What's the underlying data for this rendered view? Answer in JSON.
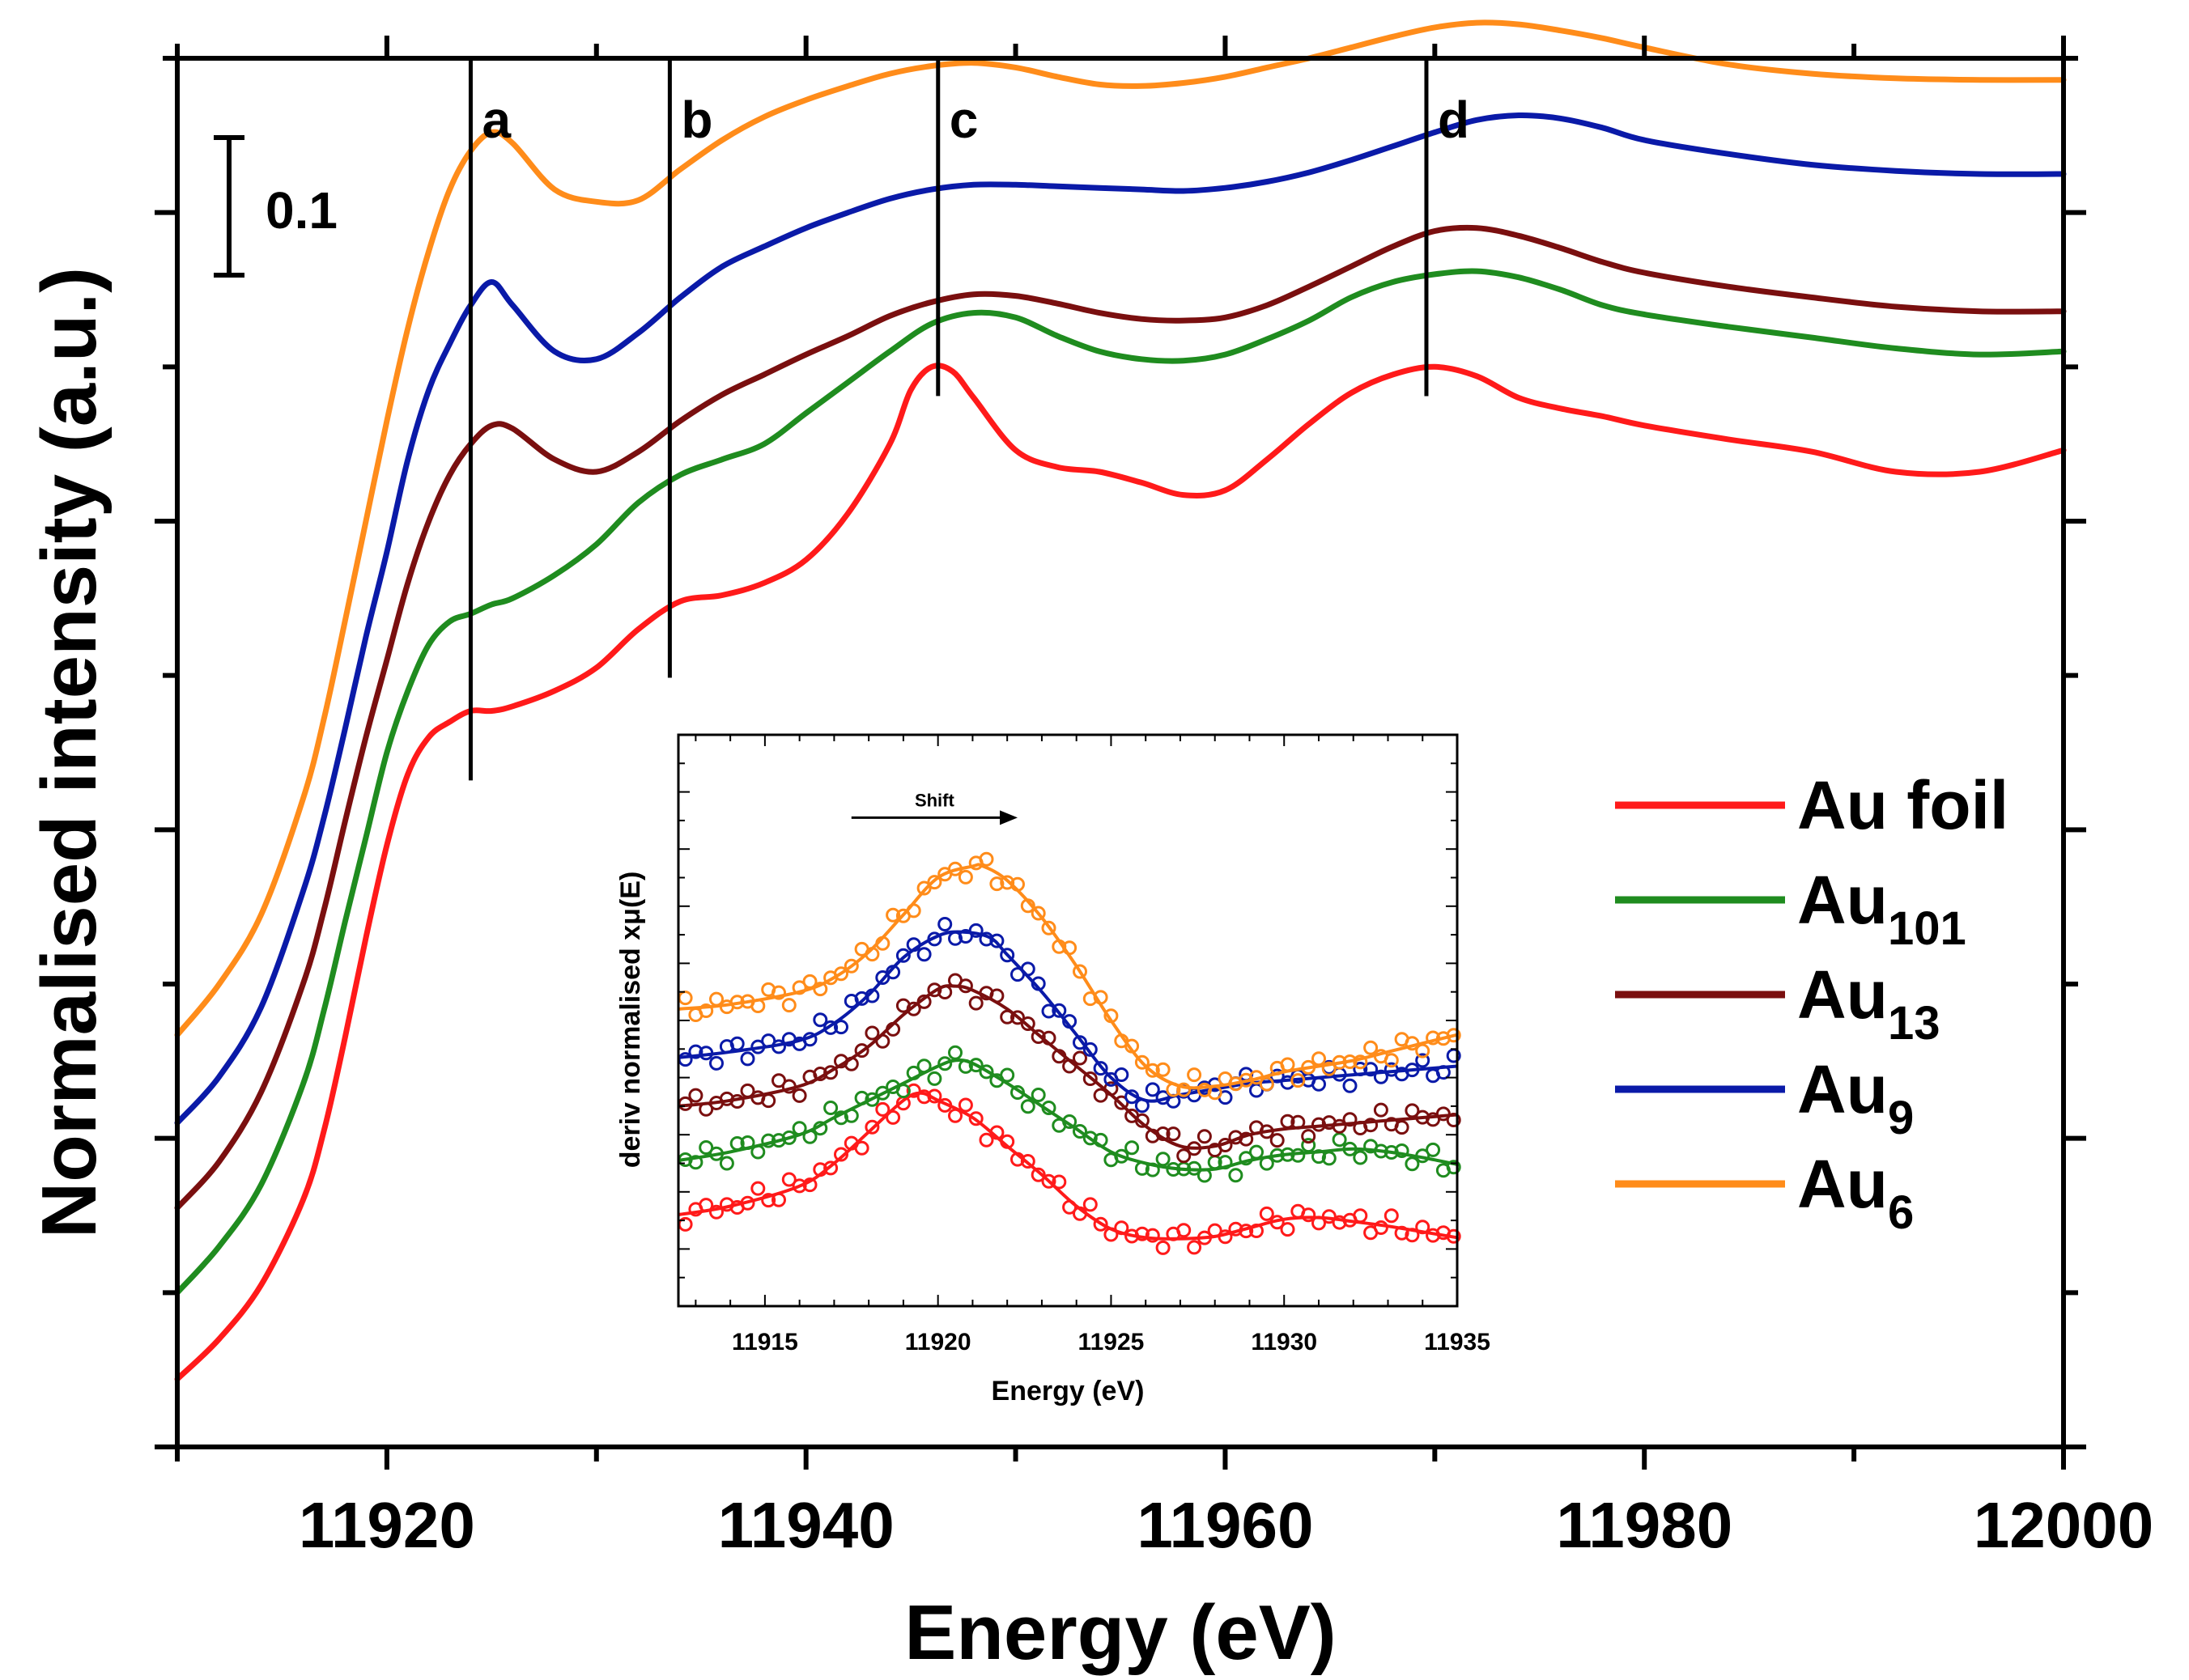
{
  "chart_data": [
    {
      "type": "line",
      "xlabel": "Energy (eV)",
      "ylabel": "Normalised intensity (a.u.)",
      "xlim": [
        11910,
        12000
      ],
      "ylim": [
        0,
        0.9
      ],
      "x_ticks": [
        11920,
        11940,
        11960,
        11980,
        12000
      ],
      "x_tick_labels": [
        "11920",
        "11940",
        "11960",
        "11980",
        "12000"
      ],
      "scale_bar": {
        "label": "0.1",
        "value": 0.1
      },
      "markers": [
        {
          "label": "a",
          "x": 11924
        },
        {
          "label": "b",
          "x": 11933.5
        },
        {
          "label": "c",
          "x": 11946.3
        },
        {
          "label": "d",
          "x": 11969.6
        }
      ],
      "legend": {
        "placement": "right",
        "entries": [
          {
            "name": "Au foil",
            "base": "Au foil",
            "sub": ""
          },
          {
            "name": "Au101",
            "base": "Au",
            "sub": "101"
          },
          {
            "name": "Au13",
            "base": "Au",
            "sub": "13"
          },
          {
            "name": "Au9",
            "base": "Au",
            "sub": "9"
          },
          {
            "name": "Au6",
            "base": "Au",
            "sub": "6"
          }
        ]
      },
      "series": [
        {
          "name": "Au foil",
          "color": "#ff1a1a",
          "x": [
            11910,
            11912,
            11914,
            11916,
            11917,
            11918,
            11919,
            11920,
            11921,
            11922,
            11923,
            11924,
            11925,
            11926,
            11928,
            11930,
            11932,
            11934,
            11936,
            11938,
            11940,
            11942,
            11944,
            11945,
            11946,
            11947,
            11948,
            11950,
            11952,
            11954,
            11956,
            11958,
            11960,
            11962,
            11964,
            11966,
            11968,
            11970,
            11972,
            11974,
            11976,
            11978,
            11980,
            11984,
            11988,
            11992,
            11996,
            12000
          ],
          "y": [
            0.044,
            0.07,
            0.105,
            0.16,
            0.205,
            0.265,
            0.33,
            0.39,
            0.436,
            0.46,
            0.47,
            0.477,
            0.477,
            0.48,
            0.49,
            0.505,
            0.53,
            0.548,
            0.552,
            0.56,
            0.575,
            0.605,
            0.65,
            0.685,
            0.7,
            0.697,
            0.68,
            0.646,
            0.635,
            0.632,
            0.625,
            0.617,
            0.62,
            0.64,
            0.663,
            0.683,
            0.695,
            0.7,
            0.694,
            0.68,
            0.673,
            0.668,
            0.662,
            0.653,
            0.645,
            0.632,
            0.632,
            0.646
          ]
        },
        {
          "name": "Au101",
          "color": "#1f8c1f",
          "x": [
            11910,
            11912,
            11914,
            11916,
            11917,
            11918,
            11919,
            11920,
            11921,
            11922,
            11923,
            11924,
            11925,
            11926,
            11928,
            11930,
            11932,
            11934,
            11936,
            11938,
            11940,
            11942,
            11944,
            11946,
            11948,
            11950,
            11952,
            11954,
            11956,
            11958,
            11960,
            11962,
            11964,
            11966,
            11968,
            11970,
            11972,
            11974,
            11976,
            11978,
            11980,
            11984,
            11988,
            11992,
            11996,
            12000
          ],
          "y": [
            0.1,
            0.13,
            0.17,
            0.235,
            0.283,
            0.34,
            0.395,
            0.45,
            0.49,
            0.52,
            0.535,
            0.54,
            0.546,
            0.55,
            0.565,
            0.585,
            0.612,
            0.63,
            0.64,
            0.65,
            0.67,
            0.69,
            0.71,
            0.728,
            0.735,
            0.732,
            0.72,
            0.71,
            0.705,
            0.704,
            0.708,
            0.718,
            0.73,
            0.745,
            0.755,
            0.76,
            0.762,
            0.758,
            0.75,
            0.74,
            0.734,
            0.726,
            0.719,
            0.712,
            0.708,
            0.71
          ]
        },
        {
          "name": "Au13",
          "color": "#7a0f0f",
          "x": [
            11910,
            11912,
            11914,
            11916,
            11917,
            11918,
            11919,
            11920,
            11921,
            11922,
            11923,
            11924,
            11925,
            11926,
            11928,
            11930,
            11932,
            11934,
            11936,
            11938,
            11940,
            11942,
            11944,
            11946,
            11948,
            11950,
            11952,
            11954,
            11956,
            11958,
            11960,
            11962,
            11964,
            11966,
            11968,
            11970,
            11972,
            11974,
            11976,
            11978,
            11980,
            11984,
            11988,
            11992,
            11996,
            12000
          ],
          "y": [
            0.155,
            0.185,
            0.23,
            0.3,
            0.348,
            0.405,
            0.46,
            0.51,
            0.56,
            0.6,
            0.63,
            0.65,
            0.662,
            0.66,
            0.64,
            0.632,
            0.645,
            0.665,
            0.682,
            0.695,
            0.708,
            0.72,
            0.733,
            0.742,
            0.747,
            0.746,
            0.741,
            0.735,
            0.731,
            0.73,
            0.732,
            0.74,
            0.752,
            0.765,
            0.778,
            0.788,
            0.79,
            0.785,
            0.777,
            0.768,
            0.761,
            0.752,
            0.745,
            0.739,
            0.736,
            0.736
          ]
        },
        {
          "name": "Au9",
          "color": "#0a1aa8",
          "x": [
            11910,
            11912,
            11914,
            11916,
            11917,
            11918,
            11919,
            11920,
            11921,
            11922,
            11923,
            11924,
            11925,
            11926,
            11928,
            11930,
            11932,
            11934,
            11936,
            11938,
            11940,
            11942,
            11944,
            11946,
            11948,
            11950,
            11952,
            11954,
            11956,
            11958,
            11960,
            11962,
            11964,
            11966,
            11968,
            11970,
            11972,
            11974,
            11976,
            11978,
            11980,
            11984,
            11988,
            11992,
            11996,
            12000
          ],
          "y": [
            0.21,
            0.24,
            0.285,
            0.36,
            0.408,
            0.465,
            0.525,
            0.58,
            0.64,
            0.685,
            0.715,
            0.74,
            0.755,
            0.74,
            0.71,
            0.705,
            0.722,
            0.745,
            0.765,
            0.778,
            0.79,
            0.8,
            0.809,
            0.815,
            0.818,
            0.818,
            0.817,
            0.816,
            0.815,
            0.814,
            0.816,
            0.82,
            0.826,
            0.834,
            0.843,
            0.852,
            0.86,
            0.863,
            0.861,
            0.855,
            0.847,
            0.838,
            0.831,
            0.827,
            0.825,
            0.825
          ]
        },
        {
          "name": "Au6",
          "color": "#ff8c1a",
          "x": [
            11910,
            11912,
            11914,
            11916,
            11917,
            11918,
            11919,
            11920,
            11921,
            11922,
            11923,
            11924,
            11925,
            11926,
            11928,
            11930,
            11932,
            11934,
            11936,
            11938,
            11940,
            11942,
            11944,
            11946,
            11948,
            11950,
            11952,
            11954,
            11956,
            11958,
            11960,
            11962,
            11964,
            11966,
            11968,
            11970,
            11972,
            11974,
            11976,
            11978,
            11980,
            11984,
            11988,
            11992,
            11996,
            12000
          ],
          "y": [
            0.267,
            0.3,
            0.345,
            0.42,
            0.472,
            0.535,
            0.6,
            0.665,
            0.725,
            0.775,
            0.815,
            0.84,
            0.852,
            0.845,
            0.815,
            0.807,
            0.808,
            0.828,
            0.847,
            0.862,
            0.873,
            0.882,
            0.89,
            0.895,
            0.897,
            0.894,
            0.888,
            0.883,
            0.882,
            0.884,
            0.888,
            0.894,
            0.9,
            0.907,
            0.914,
            0.92,
            0.923,
            0.922,
            0.918,
            0.913,
            0.907,
            0.896,
            0.89,
            0.887,
            0.886,
            0.886
          ]
        }
      ]
    },
    {
      "type": "line",
      "xlabel": "Energy (eV)",
      "ylabel": "deriv normalised xμ(E)",
      "xlim": [
        11912.5,
        11935
      ],
      "ylim": [
        0,
        1
      ],
      "x_ticks": [
        11915,
        11920,
        11925,
        11930,
        11935
      ],
      "x_tick_labels": [
        "11915",
        "11920",
        "11925",
        "11930",
        "11935"
      ],
      "annotation": {
        "label": "Shift",
        "from_x": 11917.5,
        "to_x": 11922.3
      },
      "series": [
        {
          "name": "Au foil",
          "color": "#ff1a1a",
          "x": [
            11912.5,
            11914,
            11916,
            11917,
            11918,
            11919,
            11919.5,
            11920,
            11921,
            11922,
            11923,
            11924,
            11925,
            11926,
            11927,
            11928,
            11929,
            11930,
            11931,
            11932,
            11933,
            11934,
            11935
          ],
          "y": [
            0.16,
            0.175,
            0.21,
            0.25,
            0.305,
            0.36,
            0.373,
            0.36,
            0.33,
            0.28,
            0.23,
            0.175,
            0.135,
            0.12,
            0.118,
            0.122,
            0.137,
            0.152,
            0.155,
            0.148,
            0.14,
            0.13,
            0.12
          ]
        },
        {
          "name": "Au101",
          "color": "#1f8c1f",
          "x": [
            11912.5,
            11914,
            11916,
            11917,
            11918,
            11919,
            11920,
            11920.5,
            11921,
            11922,
            11923,
            11924,
            11925,
            11926,
            11927,
            11928,
            11929,
            11930,
            11931,
            11932,
            11933,
            11934,
            11935
          ],
          "y": [
            0.255,
            0.27,
            0.3,
            0.33,
            0.36,
            0.39,
            0.42,
            0.43,
            0.425,
            0.39,
            0.35,
            0.31,
            0.27,
            0.25,
            0.24,
            0.24,
            0.255,
            0.265,
            0.27,
            0.275,
            0.27,
            0.26,
            0.248
          ]
        },
        {
          "name": "Au13",
          "color": "#7a0f0f",
          "x": [
            11912.5,
            11914,
            11916,
            11917,
            11918,
            11919,
            11920,
            11920.5,
            11921,
            11922,
            11923,
            11924,
            11925,
            11926,
            11927,
            11928,
            11929,
            11930,
            11931,
            11932,
            11933,
            11934,
            11935
          ],
          "y": [
            0.35,
            0.36,
            0.385,
            0.415,
            0.455,
            0.51,
            0.555,
            0.56,
            0.553,
            0.52,
            0.47,
            0.42,
            0.37,
            0.315,
            0.28,
            0.28,
            0.3,
            0.31,
            0.315,
            0.32,
            0.325,
            0.33,
            0.335
          ]
        },
        {
          "name": "Au9",
          "color": "#0a1aa8",
          "x": [
            11912.5,
            11914,
            11916,
            11917,
            11918,
            11919,
            11920,
            11920.7,
            11921.5,
            11922,
            11923,
            11924,
            11925,
            11926,
            11927,
            11928,
            11929,
            11930,
            11931,
            11932,
            11933,
            11934,
            11935
          ],
          "y": [
            0.435,
            0.445,
            0.465,
            0.495,
            0.545,
            0.61,
            0.648,
            0.655,
            0.645,
            0.615,
            0.55,
            0.475,
            0.4,
            0.36,
            0.37,
            0.38,
            0.39,
            0.395,
            0.4,
            0.405,
            0.41,
            0.415,
            0.42
          ]
        },
        {
          "name": "Au6",
          "color": "#ff8c1a",
          "x": [
            11912.5,
            11914,
            11916,
            11917,
            11918,
            11919,
            11920,
            11921,
            11921.3,
            11922,
            11923,
            11924,
            11925,
            11926,
            11927,
            11928,
            11929,
            11930,
            11931,
            11932,
            11933,
            11934,
            11935
          ],
          "y": [
            0.52,
            0.528,
            0.55,
            0.575,
            0.62,
            0.685,
            0.75,
            0.77,
            0.77,
            0.745,
            0.68,
            0.595,
            0.5,
            0.42,
            0.385,
            0.385,
            0.395,
            0.41,
            0.42,
            0.43,
            0.445,
            0.46,
            0.475
          ]
        }
      ]
    }
  ]
}
